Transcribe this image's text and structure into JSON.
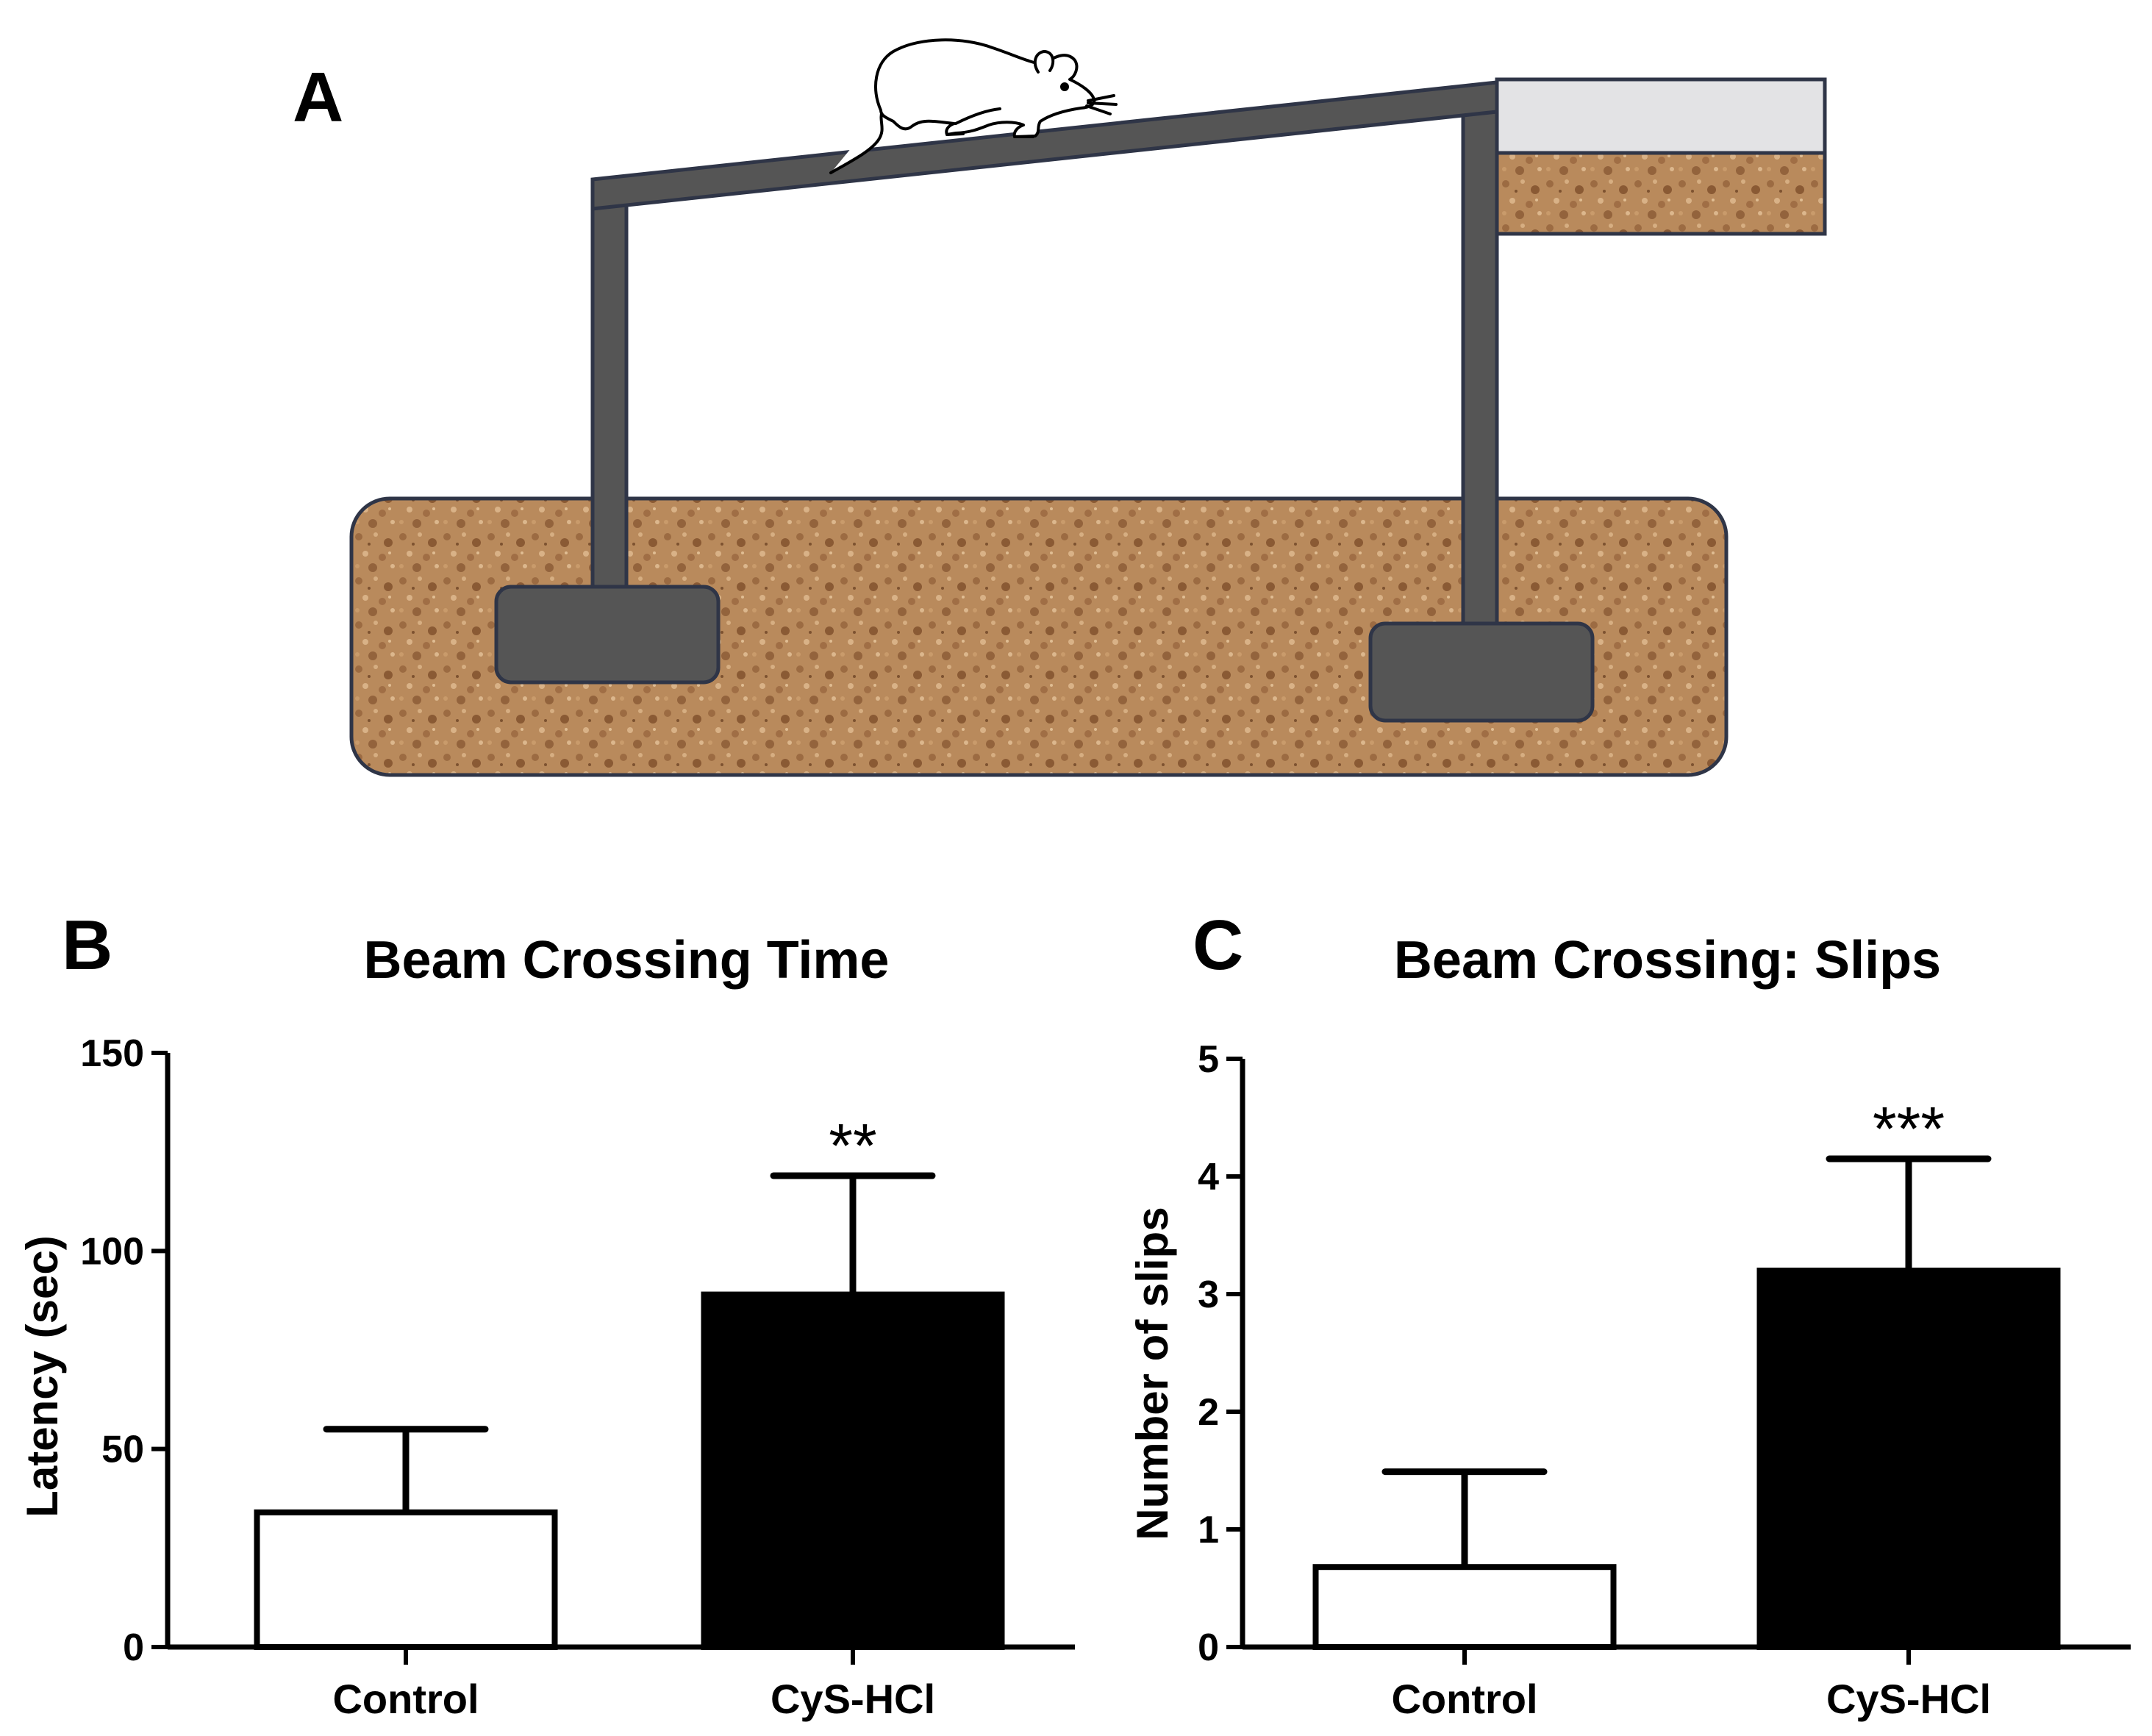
{
  "panels": {
    "a": {
      "letter": "A"
    },
    "b": {
      "letter": "B"
    },
    "c": {
      "letter": "C"
    }
  },
  "colors": {
    "beam": "#555555",
    "beam_outline": "#2f3547",
    "cork": "#b98a5c",
    "cork_dark": "#8a5a34",
    "box_lid": "#e3e3e5",
    "control_fill": "#ffffff",
    "treated_fill": "#000000"
  },
  "icons": {
    "animal": "rat-icon"
  },
  "chart_data": [
    {
      "type": "bar",
      "title": "Beam Crossing Time",
      "xlabel": "",
      "ylabel": "Latency (sec)",
      "categories": [
        "Control",
        "CyS-HCl"
      ],
      "values": [
        34,
        89
      ],
      "errors": [
        21,
        30
      ],
      "significance": [
        "",
        "**"
      ],
      "ylim": [
        0,
        150
      ],
      "yticks": [
        0,
        50,
        100,
        150
      ],
      "grid": false
    },
    {
      "type": "bar",
      "title": "Beam Crossing: Slips",
      "xlabel": "",
      "ylabel": "Number of slips",
      "categories": [
        "Control",
        "CyS-HCl"
      ],
      "values": [
        0.68,
        3.2
      ],
      "errors": [
        0.81,
        0.95
      ],
      "significance": [
        "",
        "***"
      ],
      "ylim": [
        0,
        5
      ],
      "yticks": [
        0,
        1,
        2,
        3,
        4,
        5
      ],
      "grid": false
    }
  ]
}
